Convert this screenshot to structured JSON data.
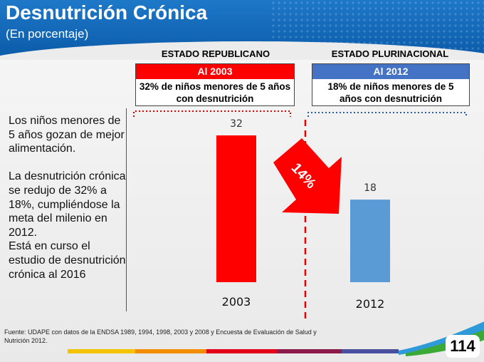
{
  "header": {
    "title": "Desnutrición Crónica",
    "subtitle": "(En porcentaje)"
  },
  "left_box": {
    "heading": "ESTADO REPUBLICANO",
    "bar_label": "Al 2003",
    "text": "32% de niños menores de 5 años con desnutrición",
    "color": "#ff0000"
  },
  "right_box": {
    "heading": "ESTADO PLURINACIONAL",
    "bar_label": "Al 2012",
    "text": "18% de niños menores de 5 años con desnutrición",
    "color": "#4472c4"
  },
  "left_text": {
    "p1": "Los niños menores de 5 años gozan de mejor alimentación.",
    "p2": "La desnutrición crónica se redujo de 32% a 18%, cumpliéndose la meta del milenio en 2012.",
    "p3": "Está en curso el estudio de desnutrición crónica al 2016"
  },
  "arrow": {
    "label": "14%",
    "color": "#ff0000"
  },
  "chart_data": {
    "type": "bar",
    "categories": [
      "2003",
      "2012"
    ],
    "values": [
      32,
      18
    ],
    "colors": [
      "#ff0000",
      "#5b9bd5"
    ],
    "title": "",
    "xlabel": "",
    "ylabel": "",
    "ylim": [
      0,
      32
    ],
    "grid": false,
    "data_labels": true
  },
  "source": "Fuente: UDAPE con datos de la ENDSA 1989, 1994, 1998, 2003 y 2008 y Encuesta de Evaluación de Salud y Nutrición 2012.",
  "page_number": "114"
}
